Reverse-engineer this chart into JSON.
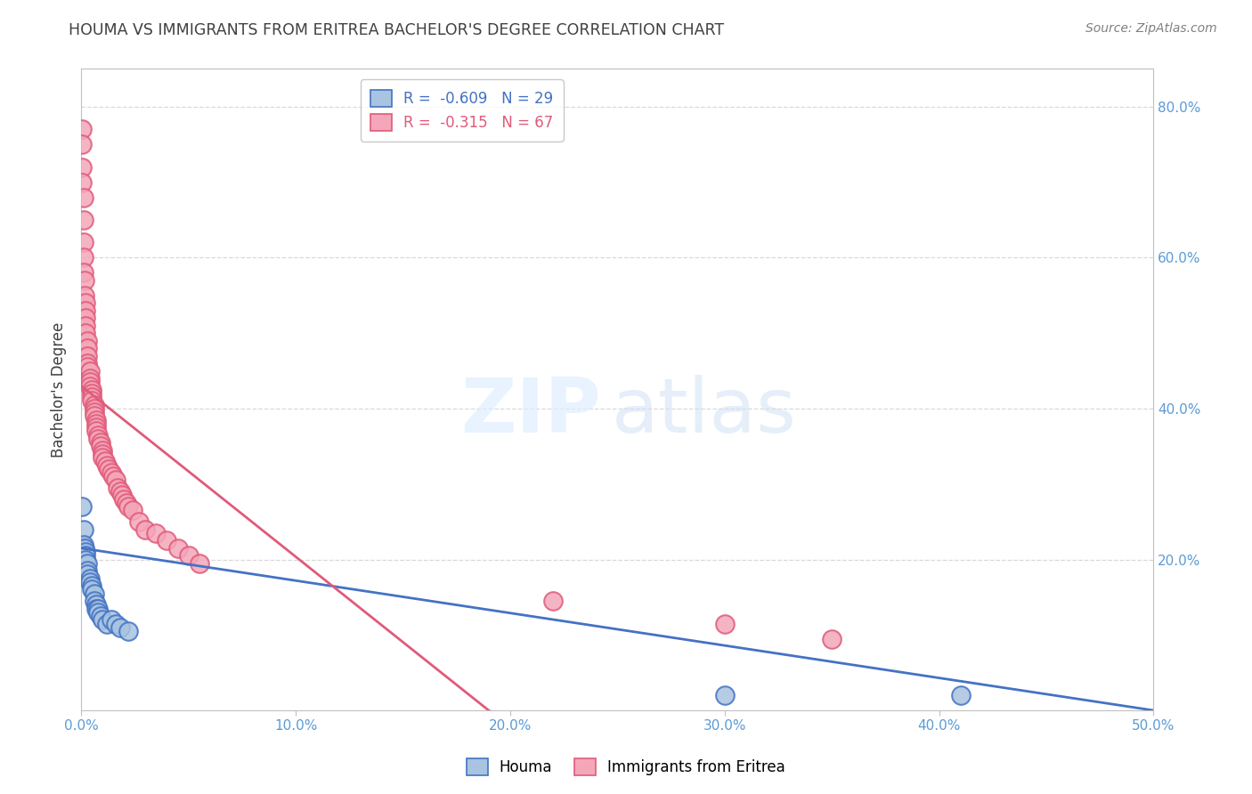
{
  "title": "HOUMA VS IMMIGRANTS FROM ERITREA BACHELOR'S DEGREE CORRELATION CHART",
  "source": "Source: ZipAtlas.com",
  "ylabel": "Bachelor's Degree",
  "houma_R": -0.609,
  "houma_N": 29,
  "eritrea_R": -0.315,
  "eritrea_N": 67,
  "houma_color": "#a8c4e0",
  "houma_line_color": "#4472c4",
  "eritrea_color": "#f4a7b9",
  "eritrea_line_color": "#e05a7a",
  "houma_x": [
    0.0005,
    0.001,
    0.001,
    0.0015,
    0.002,
    0.002,
    0.002,
    0.003,
    0.003,
    0.003,
    0.004,
    0.004,
    0.005,
    0.005,
    0.006,
    0.006,
    0.007,
    0.007,
    0.008,
    0.008,
    0.009,
    0.01,
    0.012,
    0.014,
    0.016,
    0.018,
    0.022,
    0.3,
    0.41
  ],
  "houma_y": [
    0.27,
    0.24,
    0.22,
    0.215,
    0.21,
    0.205,
    0.2,
    0.195,
    0.185,
    0.18,
    0.175,
    0.17,
    0.165,
    0.16,
    0.155,
    0.145,
    0.14,
    0.135,
    0.135,
    0.13,
    0.125,
    0.12,
    0.115,
    0.12,
    0.115,
    0.11,
    0.105,
    0.02,
    0.02
  ],
  "eritrea_x": [
    0.0002,
    0.0003,
    0.0005,
    0.0005,
    0.001,
    0.001,
    0.001,
    0.001,
    0.001,
    0.0015,
    0.0015,
    0.002,
    0.002,
    0.002,
    0.002,
    0.002,
    0.003,
    0.003,
    0.003,
    0.003,
    0.003,
    0.004,
    0.004,
    0.004,
    0.004,
    0.005,
    0.005,
    0.005,
    0.005,
    0.006,
    0.006,
    0.006,
    0.006,
    0.007,
    0.007,
    0.007,
    0.007,
    0.008,
    0.008,
    0.009,
    0.009,
    0.01,
    0.01,
    0.01,
    0.011,
    0.012,
    0.013,
    0.014,
    0.015,
    0.016,
    0.017,
    0.018,
    0.019,
    0.02,
    0.021,
    0.022,
    0.024,
    0.027,
    0.03,
    0.035,
    0.04,
    0.045,
    0.05,
    0.055,
    0.22,
    0.3,
    0.35
  ],
  "eritrea_y": [
    0.77,
    0.75,
    0.72,
    0.7,
    0.68,
    0.65,
    0.62,
    0.6,
    0.58,
    0.57,
    0.55,
    0.54,
    0.53,
    0.52,
    0.51,
    0.5,
    0.49,
    0.48,
    0.47,
    0.46,
    0.455,
    0.45,
    0.44,
    0.435,
    0.43,
    0.425,
    0.42,
    0.415,
    0.41,
    0.405,
    0.4,
    0.395,
    0.39,
    0.385,
    0.38,
    0.375,
    0.37,
    0.365,
    0.36,
    0.355,
    0.35,
    0.345,
    0.34,
    0.335,
    0.33,
    0.325,
    0.32,
    0.315,
    0.31,
    0.305,
    0.295,
    0.29,
    0.285,
    0.28,
    0.275,
    0.27,
    0.265,
    0.25,
    0.24,
    0.235,
    0.225,
    0.215,
    0.205,
    0.195,
    0.145,
    0.115,
    0.095
  ],
  "houma_line_x0": 0.0,
  "houma_line_y0": 0.215,
  "houma_line_x1": 0.5,
  "houma_line_y1": 0.0,
  "eritrea_line_x0": 0.0,
  "eritrea_line_y0": 0.43,
  "eritrea_line_x1": 0.19,
  "eritrea_line_y1": 0.0,
  "xlim": [
    0.0,
    0.5
  ],
  "ylim": [
    0.0,
    0.85
  ],
  "bg_color": "#ffffff",
  "grid_color": "#d9d9d9",
  "axis_color": "#c0c0c0",
  "tick_color": "#5b9bd5",
  "title_color": "#404040",
  "source_color": "#808080"
}
